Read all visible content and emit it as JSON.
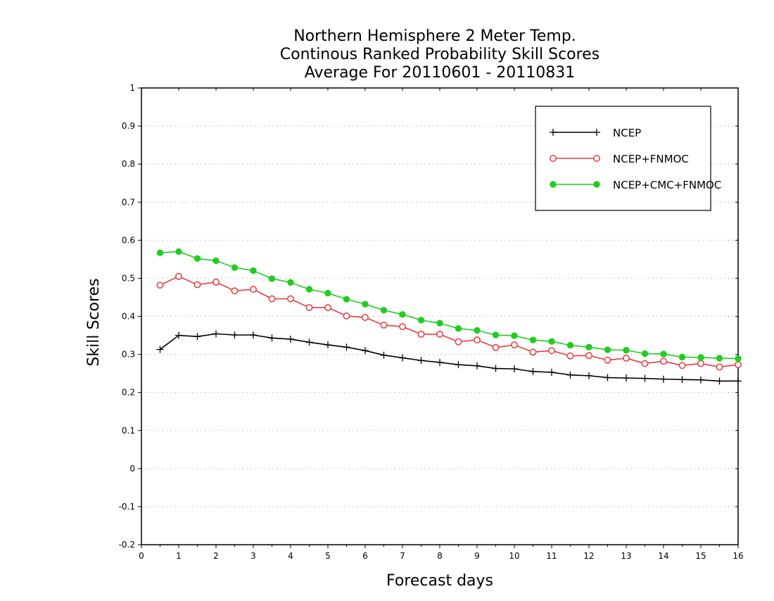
{
  "chart_data": {
    "type": "line",
    "title_lines": [
      "Northern Hemisphere 2 Meter Temp.",
      "Continous Ranked Probability Skill Scores",
      "Average For 20110601 - 20110831"
    ],
    "xlabel": "Forecast days",
    "ylabel": "Skill Scores",
    "xlim": [
      0,
      16
    ],
    "ylim": [
      -0.2,
      1
    ],
    "x_ticks": [
      0,
      1,
      2,
      3,
      4,
      5,
      6,
      7,
      8,
      9,
      10,
      11,
      12,
      13,
      14,
      15,
      16
    ],
    "x_tick_labels": [
      "0",
      "1",
      "2",
      "3",
      "4",
      "5",
      "6",
      "7",
      "8",
      "9",
      "10",
      "11",
      "12",
      "13",
      "14",
      "15",
      "16"
    ],
    "y_ticks": [
      -0.2,
      -0.1,
      0,
      0.1,
      0.2,
      0.3,
      0.4,
      0.5,
      0.6,
      0.7,
      0.8,
      0.9,
      1
    ],
    "y_tick_labels": [
      "-0.2",
      "-0.1",
      "0",
      "0.1",
      "0.2",
      "0.3",
      "0.4",
      "0.5",
      "0.6",
      "0.7",
      "0.8",
      "0.9",
      "1"
    ],
    "grid": "horizontal dotted",
    "legend_position": "top-right",
    "x": [
      0.5,
      1,
      1.5,
      2,
      2.5,
      3,
      3.5,
      4,
      4.5,
      5,
      5.5,
      6,
      6.5,
      7,
      7.5,
      8,
      8.5,
      9,
      9.5,
      10,
      10.5,
      11,
      11.5,
      12,
      12.5,
      13,
      13.5,
      14,
      14.5,
      15,
      15.5,
      16
    ],
    "series": [
      {
        "name": "NCEP",
        "color": "#000000",
        "marker": "plus",
        "values": [
          0.313,
          0.35,
          0.347,
          0.354,
          0.351,
          0.351,
          0.343,
          0.34,
          0.332,
          0.325,
          0.319,
          0.31,
          0.298,
          0.291,
          0.284,
          0.279,
          0.273,
          0.27,
          0.263,
          0.262,
          0.255,
          0.253,
          0.246,
          0.244,
          0.239,
          0.238,
          0.237,
          0.235,
          0.234,
          0.233,
          0.23,
          0.23
        ]
      },
      {
        "name": "NCEP+FNMOC",
        "color": "#e8383d",
        "marker": "open-circle",
        "values": [
          0.482,
          0.505,
          0.483,
          0.49,
          0.467,
          0.471,
          0.446,
          0.446,
          0.423,
          0.423,
          0.401,
          0.397,
          0.377,
          0.373,
          0.353,
          0.353,
          0.333,
          0.338,
          0.318,
          0.325,
          0.306,
          0.31,
          0.296,
          0.297,
          0.285,
          0.29,
          0.276,
          0.282,
          0.271,
          0.276,
          0.267,
          0.273
        ]
      },
      {
        "name": "NCEP+CMC+FNMOC",
        "color": "#22cc22",
        "marker": "filled-circle",
        "values": [
          0.567,
          0.57,
          0.552,
          0.546,
          0.528,
          0.52,
          0.499,
          0.489,
          0.471,
          0.461,
          0.445,
          0.432,
          0.416,
          0.405,
          0.39,
          0.382,
          0.368,
          0.363,
          0.351,
          0.349,
          0.338,
          0.334,
          0.324,
          0.319,
          0.312,
          0.311,
          0.302,
          0.301,
          0.293,
          0.292,
          0.29,
          0.289
        ]
      }
    ]
  }
}
